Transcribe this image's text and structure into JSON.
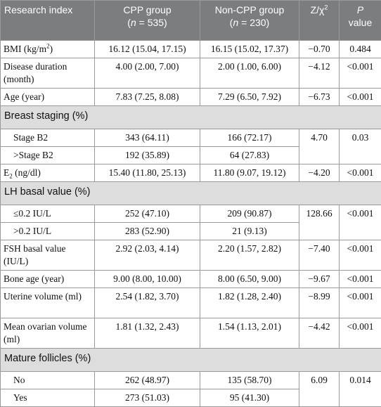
{
  "header": {
    "col1": "Research index",
    "col2_line1": "CPP group",
    "col2_n_open": "(",
    "col2_n_var": "n",
    "col2_n_rest": " = 535)",
    "col3_line1": "Non-CPP group",
    "col3_n_open": "(",
    "col3_n_var": "n",
    "col3_n_rest": " = 230)",
    "col4": "Z/χ",
    "col4_sup": "2",
    "col5_line1": "P",
    "col5_line2": "value"
  },
  "rows": {
    "bmi": {
      "label": "BMI (kg/m",
      "label_sup": "2",
      "label_end": ")",
      "cpp": "16.12 (15.04, 17.15)",
      "noncpp": "16.15 (15.02, 17.37)",
      "z": "−0.70",
      "p": "0.484"
    },
    "disease_duration": {
      "label": "Disease duration (month)",
      "cpp": "4.00 (2.00, 7.00)",
      "noncpp": "2.00 (1.00, 6.00)",
      "z": "−4.12",
      "p": "<0.001"
    },
    "age": {
      "label": "Age (year)",
      "cpp": "7.83 (7.25, 8.08)",
      "noncpp": "7.29 (6.50, 7.92)",
      "z": "−6.73",
      "p": "<0.001"
    },
    "breast_section": "Breast staging (%)",
    "stage_b2": {
      "label": "Stage B2",
      "cpp": "343 (64.11)",
      "noncpp": "166 (72.17)"
    },
    "stage_gt_b2": {
      "label": ">Stage B2",
      "cpp": "192 (35.89)",
      "noncpp": "64 (27.83)"
    },
    "breast_stats": {
      "z": "4.70",
      "p": "0.03"
    },
    "e2": {
      "label_main": "E",
      "label_sub": "2",
      "label_rest": " (ng/dl)",
      "cpp": "15.40 (11.80, 25.13)",
      "noncpp": "11.80 (9.07, 19.12)",
      "z": "−4.20",
      "p": "<0.001"
    },
    "lh_section": "LH basal value (%)",
    "lh_le": {
      "label": "≤0.2 IU/L",
      "cpp": "252 (47.10)",
      "noncpp": "209 (90.87)"
    },
    "lh_gt": {
      "label": ">0.2 IU/L",
      "cpp": "283 (52.90)",
      "noncpp": "21 (9.13)"
    },
    "lh_stats": {
      "z": "128.66",
      "p": "<0.001"
    },
    "fsh": {
      "label": "FSH basal value (IU/L)",
      "cpp": "2.92 (2.03, 4.14)",
      "noncpp": "2.20 (1.57, 2.82)",
      "z": "−7.40",
      "p": "<0.001"
    },
    "bone_age": {
      "label": "Bone age (year)",
      "cpp": "9.00 (8.00, 10.00)",
      "noncpp": "8.00 (6.50, 9.00)",
      "z": "−9.67",
      "p": "<0.001"
    },
    "uterine": {
      "label": "Uterine volume (ml)",
      "cpp": "2.54 (1.82, 3.70)",
      "noncpp": "1.82 (1.28, 2.40)",
      "z": "−8.99",
      "p": "<0.001"
    },
    "ovarian": {
      "label": "Mean ovarian volume (ml)",
      "cpp": "1.81 (1.32, 2.43)",
      "noncpp": "1.54 (1.13, 2.01)",
      "z": "−4.42",
      "p": "<0.001"
    },
    "follicles_section": "Mature follicles (%)",
    "no": {
      "label": "No",
      "cpp": "262 (48.97)",
      "noncpp": "135 (58.70)"
    },
    "yes": {
      "label": "Yes",
      "cpp": "273 (51.03)",
      "noncpp": "95 (41.30)"
    },
    "follicle_stats": {
      "z": "6.09",
      "p": "0.014"
    }
  }
}
